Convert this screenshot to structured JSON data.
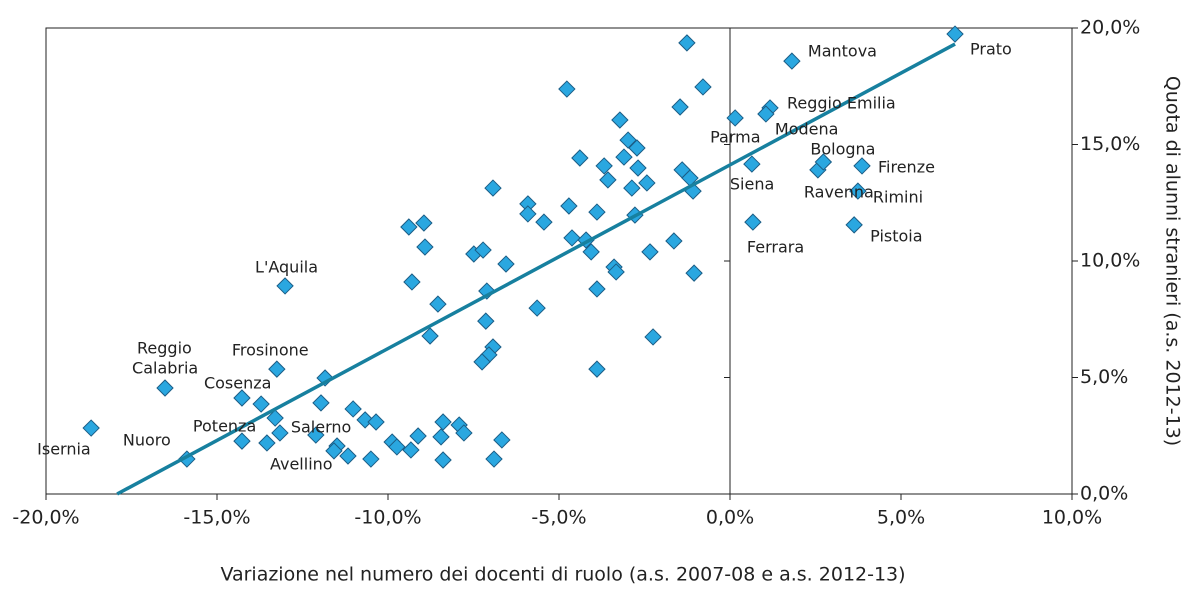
{
  "chart_data": {
    "type": "scatter",
    "x_label": "Variazione nel numero dei docenti di ruolo (a.s. 2007-08 e a.s. 2012-13)",
    "y_label": "Quota di alunni stranieri (a.s. 2012-13)",
    "xlim": [
      -20,
      10
    ],
    "ylim": [
      0,
      20
    ],
    "xticks": [
      {
        "value": -20,
        "label": "-20,0%"
      },
      {
        "value": -15,
        "label": "-15,0%"
      },
      {
        "value": -10,
        "label": "-10,0%"
      },
      {
        "value": -5,
        "label": "-5,0%"
      },
      {
        "value": 0,
        "label": "0,0%"
      },
      {
        "value": 5,
        "label": "5,0%"
      },
      {
        "value": 10,
        "label": "10,0%"
      }
    ],
    "yticks": [
      {
        "value": 0,
        "label": "0,0%"
      },
      {
        "value": 5,
        "label": "5,0%"
      },
      {
        "value": 10,
        "label": "10,0%"
      },
      {
        "value": 15,
        "label": "15,0%"
      },
      {
        "value": 20,
        "label": "20,0%"
      }
    ],
    "color": "#2aa7e0",
    "x": [
      6.58,
      1.81,
      -1.26,
      -4.77,
      -0.79,
      -1.46,
      0.15,
      1.17,
      1.05,
      -3.22,
      -2.98,
      -2.72,
      -3.1,
      -3.68,
      -4.39,
      -2.69,
      -3.57,
      -2.87,
      -2.43,
      -1.4,
      -1.17,
      -1.08,
      0.64,
      2.57,
      2.73,
      3.86,
      3.74,
      3.63,
      0.67,
      -6.93,
      -5.91,
      -5.91,
      -5.44,
      -4.71,
      -3.89,
      -2.78,
      -4.62,
      -4.21,
      -4.06,
      -2.34,
      -1.64,
      -3.39,
      -3.33,
      -3.89,
      -1.05,
      -9.39,
      -8.95,
      -8.92,
      -7.49,
      -7.22,
      -6.55,
      -9.3,
      -7.11,
      -8.54,
      -5.64,
      -7.14,
      -8.77,
      -2.25,
      -6.93,
      -7.05,
      -7.25,
      -3.89,
      -13.01,
      -13.25,
      -16.52,
      -11.84,
      -14.27,
      -13.71,
      -11.96,
      -11.02,
      -13.3,
      -10.67,
      -10.35,
      -13.16,
      -13.54,
      -14.27,
      -12.11,
      -11.49,
      -11.58,
      -11.17,
      -10.5,
      -9.88,
      -9.74,
      -9.33,
      -9.12,
      -8.39,
      -8.45,
      -7.92,
      -7.78,
      -8.39,
      -6.67,
      -6.9,
      -15.88,
      -18.68
    ],
    "y": [
      19.74,
      18.58,
      19.36,
      17.38,
      17.47,
      16.61,
      16.14,
      16.57,
      16.31,
      16.05,
      15.19,
      14.85,
      14.46,
      14.08,
      14.42,
      13.99,
      13.48,
      13.13,
      13.35,
      13.91,
      13.56,
      13.0,
      14.16,
      13.91,
      14.25,
      14.08,
      13.0,
      11.55,
      11.67,
      13.13,
      12.45,
      12.02,
      11.67,
      12.36,
      12.1,
      11.97,
      10.99,
      10.9,
      10.39,
      10.39,
      10.86,
      9.74,
      9.53,
      8.8,
      9.48,
      11.46,
      11.63,
      10.6,
      10.3,
      10.47,
      9.87,
      9.1,
      8.71,
      8.15,
      7.98,
      7.42,
      6.78,
      6.74,
      6.31,
      5.97,
      5.67,
      5.36,
      8.93,
      5.36,
      4.55,
      4.98,
      4.12,
      3.86,
      3.91,
      3.65,
      3.26,
      3.18,
      3.09,
      2.62,
      2.19,
      2.27,
      2.53,
      2.06,
      1.85,
      1.63,
      1.5,
      2.23,
      2.02,
      1.89,
      2.49,
      3.09,
      2.45,
      2.96,
      2.62,
      1.46,
      2.32,
      1.5,
      1.5,
      2.83
    ],
    "labels": [
      "Prato",
      "Mantova",
      null,
      null,
      null,
      null,
      "Parma",
      "Reggio Emilia",
      "Modena",
      null,
      null,
      null,
      null,
      null,
      null,
      null,
      null,
      null,
      null,
      null,
      null,
      null,
      "Siena",
      "Ravenna",
      "Bologna",
      "Firenze",
      "Rimini",
      "Pistoia",
      "Ferrara",
      null,
      null,
      null,
      null,
      null,
      null,
      null,
      null,
      null,
      null,
      null,
      null,
      null,
      null,
      null,
      null,
      null,
      null,
      null,
      null,
      null,
      null,
      null,
      null,
      null,
      null,
      null,
      null,
      null,
      null,
      null,
      null,
      null,
      "L'Aquila",
      "Frosinone",
      [
        "Reggio",
        "Calabria"
      ],
      null,
      "Cosenza",
      null,
      null,
      null,
      null,
      null,
      null,
      "Potenza",
      null,
      null,
      "Salerno",
      null,
      null,
      "Avellino",
      null,
      null,
      null,
      null,
      null,
      null,
      null,
      null,
      null,
      null,
      null,
      null,
      "Nuoro",
      "Isernia"
    ],
    "trendline": {
      "color": "#17809f",
      "x": [
        -17.92,
        6.58
      ],
      "y": [
        0,
        19.31
      ]
    }
  }
}
